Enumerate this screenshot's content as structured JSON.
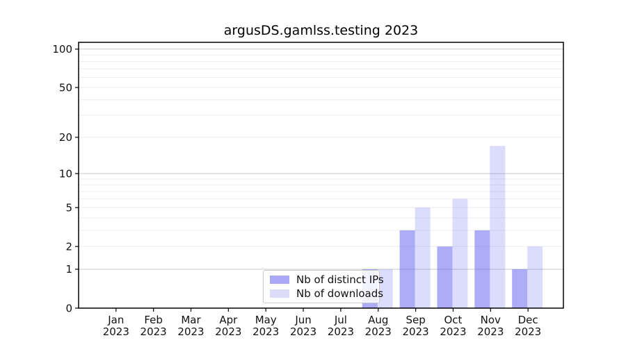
{
  "window": {
    "background": "#ffffff"
  },
  "chart_data": {
    "type": "bar",
    "title": "argusDS.gamlss.testing 2023",
    "year": "2023",
    "months": [
      "Jan",
      "Feb",
      "Mar",
      "Apr",
      "May",
      "Jun",
      "Jul",
      "Aug",
      "Sep",
      "Oct",
      "Nov",
      "Dec"
    ],
    "categories": [
      "Jan 2023",
      "Feb 2023",
      "Mar 2023",
      "Apr 2023",
      "May 2023",
      "Jun 2023",
      "Jul 2023",
      "Aug 2023",
      "Sep 2023",
      "Oct 2023",
      "Nov 2023",
      "Dec 2023"
    ],
    "series": [
      {
        "name": "Nb of distinct IPs",
        "swatch_color": "#a9a9f7",
        "fill": "rgba(90,90,240,0.5)",
        "values": [
          0,
          0,
          0,
          0,
          0,
          0,
          0,
          1,
          3,
          2,
          3,
          1
        ]
      },
      {
        "name": "Nb of downloads",
        "swatch_color": "#dcdcf8",
        "fill": "rgba(90,90,240,0.21)",
        "values": [
          0,
          0,
          0,
          0,
          0,
          0,
          0,
          1,
          5,
          6,
          17,
          2
        ]
      }
    ],
    "y_scale": "log10(value+1)",
    "y_ticks": [
      0,
      1,
      2,
      5,
      10,
      20,
      50,
      100
    ],
    "ylim": [
      0,
      112
    ],
    "grid": {
      "major": [
        1,
        10,
        100
      ],
      "minor": [
        2,
        3,
        4,
        5,
        6,
        7,
        8,
        9,
        20,
        30,
        40,
        50,
        60,
        70,
        80,
        90
      ],
      "major_color": "#c9c9c9",
      "minor_color": "#ededed"
    },
    "legend_position": "bottom-center",
    "axis_color": "#000000",
    "tick_label_color": "#111111"
  }
}
